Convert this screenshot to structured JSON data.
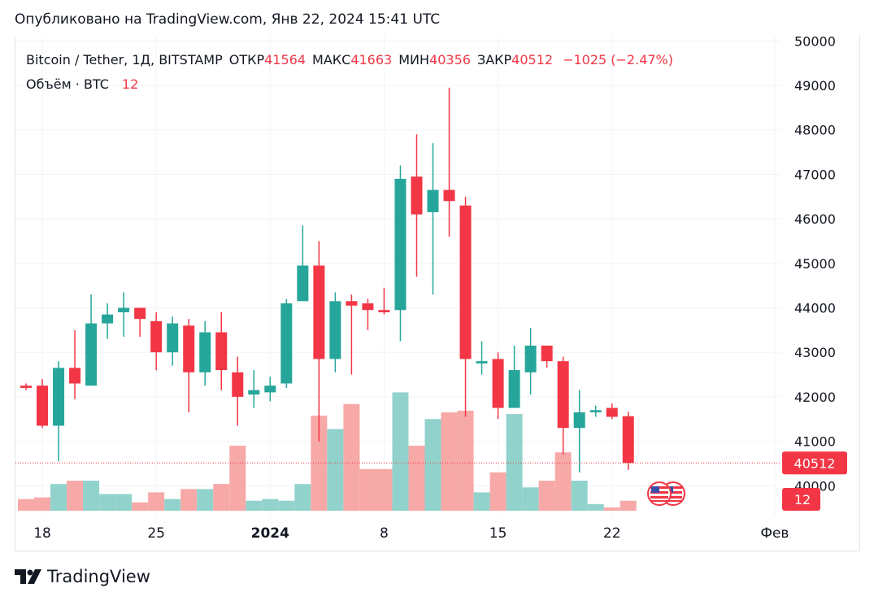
{
  "header": {
    "published": "Опубликовано на TradingView.com, Янв 22, 2024 15:41 UTC"
  },
  "legend": {
    "symbol": "Bitcoin / Tether, 1Д, BITSTAMP",
    "open_label": "ОТКР",
    "open": "41564",
    "high_label": "МАКС",
    "high": "41663",
    "low_label": "МИН",
    "low": "40356",
    "close_label": "ЗАКР",
    "close": "40512",
    "change": "−1025 (−2.47%)",
    "volume_label": "Объём · BTC",
    "volume": "12"
  },
  "footer": {
    "brand": "TradingView"
  },
  "colors": {
    "up": "#26a69a",
    "down": "#f23645",
    "up_volume": "#92d2cc",
    "down_volume": "#f7a9a7"
  },
  "icons": [
    "us-flag-icon",
    "tradingview-logo-icon"
  ],
  "chart_data": {
    "type": "candlestick",
    "title": "Bitcoin / Tether, 1Д, BITSTAMP",
    "ylim": [
      39500,
      50000
    ],
    "y_ticks": [
      "40000",
      "41000",
      "42000",
      "43000",
      "44000",
      "45000",
      "46000",
      "47000",
      "48000",
      "49000",
      "50000"
    ],
    "x_tick_labels": [
      "18",
      "25",
      "2024",
      "8",
      "15",
      "22",
      "Фев"
    ],
    "last_price_label": "40512",
    "last_volume_label": "12",
    "candles": [
      {
        "o": 42250,
        "h": 42300,
        "l": 42150,
        "c": 42200
      },
      {
        "o": 42250,
        "h": 42400,
        "l": 41300,
        "c": 41350
      },
      {
        "o": 41350,
        "h": 42800,
        "l": 40550,
        "c": 42650
      },
      {
        "o": 42650,
        "h": 43500,
        "l": 41950,
        "c": 42300
      },
      {
        "o": 42250,
        "h": 44300,
        "l": 42250,
        "c": 43650
      },
      {
        "o": 43650,
        "h": 44100,
        "l": 43300,
        "c": 43850
      },
      {
        "o": 43900,
        "h": 44350,
        "l": 43350,
        "c": 44000
      },
      {
        "o": 44000,
        "h": 44000,
        "l": 43350,
        "c": 43750
      },
      {
        "o": 43700,
        "h": 43900,
        "l": 42600,
        "c": 43000
      },
      {
        "o": 43000,
        "h": 43800,
        "l": 42700,
        "c": 43650
      },
      {
        "o": 43600,
        "h": 43750,
        "l": 41650,
        "c": 42550
      },
      {
        "o": 42550,
        "h": 43700,
        "l": 42250,
        "c": 43450
      },
      {
        "o": 43450,
        "h": 43900,
        "l": 42150,
        "c": 42600
      },
      {
        "o": 42550,
        "h": 42900,
        "l": 41350,
        "c": 42000
      },
      {
        "o": 42050,
        "h": 42600,
        "l": 41750,
        "c": 42150
      },
      {
        "o": 42100,
        "h": 42450,
        "l": 41900,
        "c": 42250
      },
      {
        "o": 42300,
        "h": 44200,
        "l": 42200,
        "c": 44100
      },
      {
        "o": 44150,
        "h": 45850,
        "l": 44150,
        "c": 44950
      },
      {
        "o": 44950,
        "h": 45500,
        "l": 41000,
        "c": 42850
      },
      {
        "o": 42850,
        "h": 44350,
        "l": 42550,
        "c": 44150
      },
      {
        "o": 44150,
        "h": 44300,
        "l": 42500,
        "c": 44050
      },
      {
        "o": 44100,
        "h": 44200,
        "l": 43500,
        "c": 43950
      },
      {
        "o": 43950,
        "h": 44450,
        "l": 43850,
        "c": 43900
      },
      {
        "o": 43950,
        "h": 47200,
        "l": 43250,
        "c": 46900
      },
      {
        "o": 46950,
        "h": 47900,
        "l": 44700,
        "c": 46100
      },
      {
        "o": 46150,
        "h": 47700,
        "l": 44300,
        "c": 46650
      },
      {
        "o": 46650,
        "h": 48950,
        "l": 45600,
        "c": 46400
      },
      {
        "o": 46300,
        "h": 46500,
        "l": 41550,
        "c": 42850
      },
      {
        "o": 42750,
        "h": 43250,
        "l": 42500,
        "c": 42800
      },
      {
        "o": 42850,
        "h": 43000,
        "l": 41500,
        "c": 41750
      },
      {
        "o": 41750,
        "h": 43150,
        "l": 41750,
        "c": 42600
      },
      {
        "o": 42550,
        "h": 43550,
        "l": 42050,
        "c": 43150
      },
      {
        "o": 43150,
        "h": 43150,
        "l": 42650,
        "c": 42800
      },
      {
        "o": 42800,
        "h": 42900,
        "l": 40700,
        "c": 41300
      },
      {
        "o": 41300,
        "h": 42150,
        "l": 40300,
        "c": 41650
      },
      {
        "o": 41650,
        "h": 41800,
        "l": 41550,
        "c": 41700
      },
      {
        "o": 41750,
        "h": 41850,
        "l": 41500,
        "c": 41550
      },
      {
        "o": 41564,
        "h": 41663,
        "l": 40356,
        "c": 40512
      }
    ],
    "volumes": [
      0.7,
      0.8,
      1.6,
      1.8,
      1.8,
      1.0,
      1.0,
      0.5,
      1.1,
      0.7,
      1.3,
      1.3,
      1.6,
      3.9,
      0.6,
      0.7,
      0.6,
      1.6,
      5.7,
      4.9,
      6.4,
      2.5,
      2.5,
      7.1,
      3.9,
      5.5,
      5.9,
      6.0,
      1.1,
      2.3,
      5.8,
      1.4,
      1.8,
      3.5,
      1.8,
      0.4,
      0.2,
      0.6
    ]
  }
}
